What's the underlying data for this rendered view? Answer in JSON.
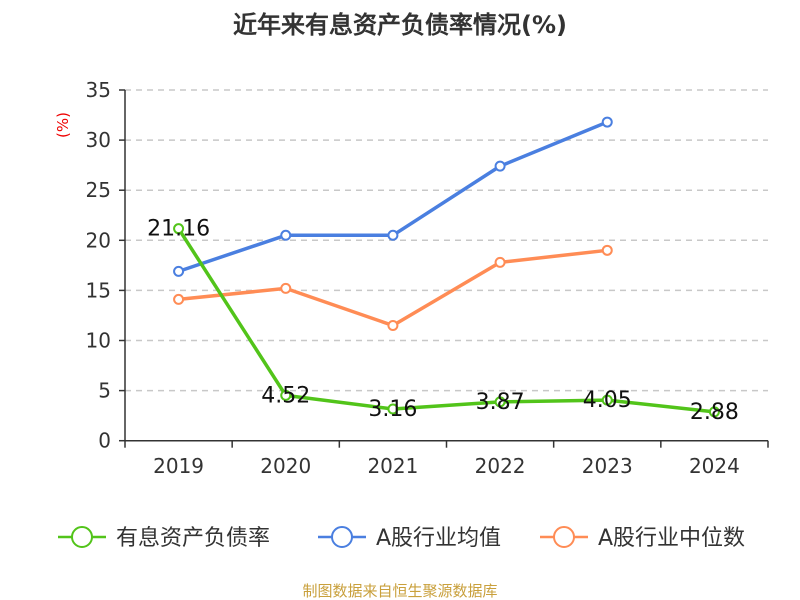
{
  "chart_data": {
    "type": "line",
    "title": "近年来有息资产负债率情况(%)",
    "ylabel": "(%)",
    "ylim": [
      0,
      35
    ],
    "yticks": [
      "0",
      "5",
      "10",
      "15",
      "20",
      "25",
      "30",
      "35"
    ],
    "grid": true,
    "legend_position": "bottom",
    "categories": [
      "2019",
      "2020",
      "2021",
      "2022",
      "2023",
      "2024"
    ],
    "series": [
      {
        "name": "有息资产负债率",
        "color": "#52c41a",
        "values": [
          21.16,
          4.52,
          3.16,
          3.87,
          4.05,
          2.88
        ],
        "labels": [
          "21.16",
          "4.52",
          "3.16",
          "3.87",
          "4.05",
          "2.88"
        ]
      },
      {
        "name": "A股行业均值",
        "color": "#4a7fe0",
        "values": [
          16.9,
          20.5,
          20.5,
          27.4,
          31.8,
          null
        ]
      },
      {
        "name": "A股行业中位数",
        "color": "#ff8c55",
        "values": [
          14.1,
          15.2,
          11.5,
          17.8,
          19.0,
          null
        ]
      }
    ]
  },
  "source": "制图数据来自恒生聚源数据库"
}
